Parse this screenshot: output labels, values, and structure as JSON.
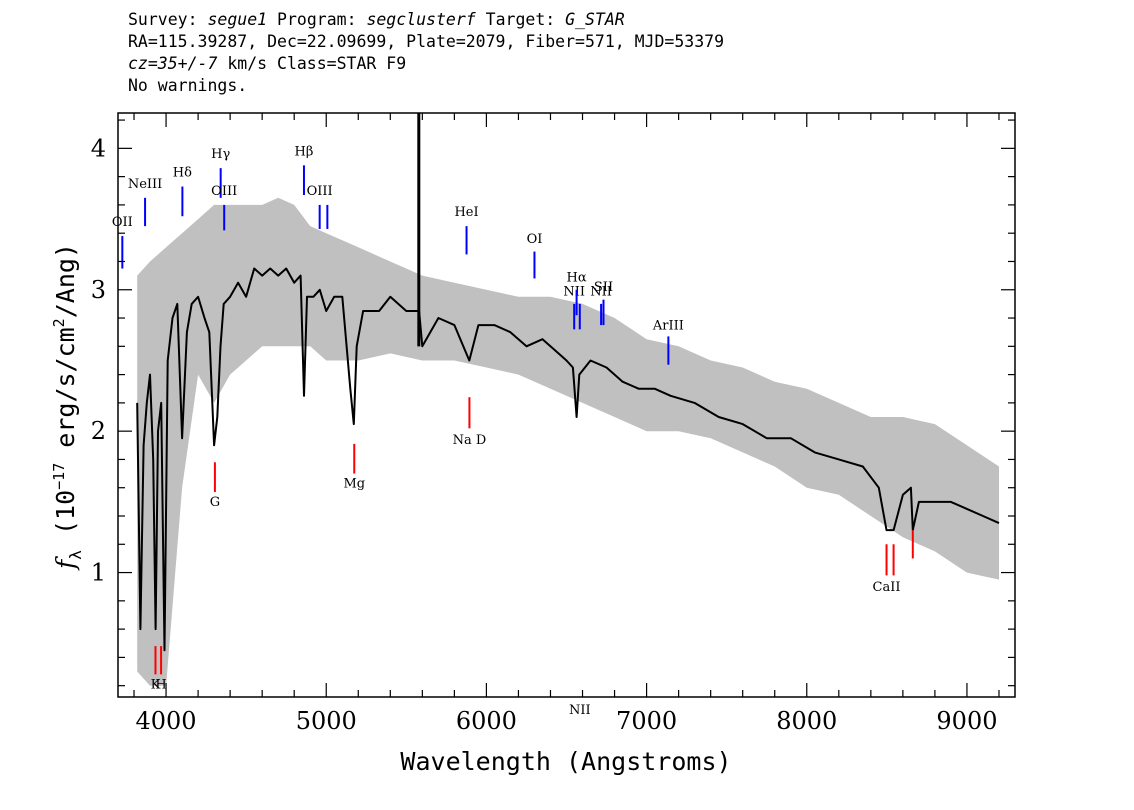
{
  "header": {
    "line1_a": "Survey: ",
    "survey": "segue1",
    "line1_b": " Program: ",
    "program": "segclusterf",
    "line1_c": " Target: ",
    "target": "G_STAR",
    "line2": "RA=115.39287, Dec=22.09699, Plate=2079, Fiber=571, MJD=53379",
    "line3_cz": "cz=35+/-7",
    "line3_rest": " km/s Class=STAR F9",
    "line4": "No warnings."
  },
  "chart_data": {
    "type": "line",
    "title": "",
    "xlabel": "Wavelength (Angstroms)",
    "ylabel_prefix": "f",
    "ylabel_sub": "λ",
    "ylabel_mid": " (10",
    "ylabel_exp": "−17",
    "ylabel_rest1": " erg/s/cm",
    "ylabel_exp2": "2",
    "ylabel_rest2": "/Ang)",
    "xlim": [
      3700,
      9300
    ],
    "ylim": [
      0.12,
      4.25
    ],
    "x_ticks": [
      4000,
      5000,
      6000,
      7000,
      8000,
      9000
    ],
    "x_tick_labels": [
      "4000",
      "5000",
      "6000",
      "7000",
      "8000",
      "9000"
    ],
    "y_ticks": [
      1,
      2,
      3,
      4
    ],
    "y_tick_labels": [
      "1",
      "2",
      "3",
      "4"
    ],
    "colors": {
      "flux": "#000000",
      "error": "#c0c0c0",
      "emission": "#0000ff",
      "absorption": "#ff0000"
    },
    "series": [
      {
        "name": "flux",
        "x": [
          3820,
          3840,
          3860,
          3880,
          3900,
          3920,
          3935,
          3950,
          3970,
          3990,
          4010,
          4040,
          4070,
          4100,
          4130,
          4160,
          4200,
          4240,
          4270,
          4300,
          4320,
          4340,
          4360,
          4400,
          4450,
          4500,
          4550,
          4600,
          4650,
          4700,
          4750,
          4800,
          4840,
          4861,
          4880,
          4920,
          4960,
          5000,
          5050,
          5100,
          5150,
          5172,
          5190,
          5230,
          5280,
          5330,
          5400,
          5500,
          5580,
          5600,
          5700,
          5800,
          5893,
          5950,
          6050,
          6150,
          6250,
          6350,
          6450,
          6500,
          6540,
          6563,
          6580,
          6650,
          6750,
          6850,
          6950,
          7050,
          7150,
          7300,
          7450,
          7600,
          7750,
          7900,
          8050,
          8200,
          8350,
          8450,
          8498,
          8542,
          8600,
          8650,
          8662,
          8700,
          8800,
          8900,
          9000,
          9100,
          9200
        ],
        "y": [
          2.2,
          0.6,
          1.9,
          2.2,
          2.4,
          1.8,
          0.6,
          2.0,
          2.2,
          0.45,
          2.5,
          2.8,
          2.9,
          1.95,
          2.7,
          2.9,
          2.95,
          2.8,
          2.7,
          1.9,
          2.1,
          2.6,
          2.9,
          2.95,
          3.05,
          2.95,
          3.15,
          3.1,
          3.15,
          3.1,
          3.15,
          3.05,
          3.1,
          2.25,
          2.95,
          2.95,
          3.0,
          2.85,
          2.95,
          2.95,
          2.3,
          2.05,
          2.6,
          2.85,
          2.85,
          2.85,
          2.95,
          2.85,
          2.85,
          2.6,
          2.8,
          2.75,
          2.5,
          2.75,
          2.75,
          2.7,
          2.6,
          2.65,
          2.55,
          2.5,
          2.45,
          2.1,
          2.4,
          2.5,
          2.45,
          2.35,
          2.3,
          2.3,
          2.25,
          2.2,
          2.1,
          2.05,
          1.95,
          1.95,
          1.85,
          1.8,
          1.75,
          1.6,
          1.3,
          1.3,
          1.55,
          1.6,
          1.3,
          1.5,
          1.5,
          1.5,
          1.45,
          1.4,
          1.35
        ]
      },
      {
        "name": "error",
        "x": [
          3820,
          3900,
          4000,
          4100,
          4200,
          4300,
          4400,
          4500,
          4600,
          4700,
          4800,
          4900,
          5000,
          5200,
          5400,
          5600,
          5800,
          6000,
          6200,
          6400,
          6600,
          6800,
          7000,
          7200,
          7400,
          7600,
          7800,
          8000,
          8200,
          8400,
          8600,
          8800,
          9000,
          9200
        ],
        "lower": [
          0.3,
          0.2,
          0.2,
          1.6,
          2.4,
          2.2,
          2.4,
          2.5,
          2.6,
          2.6,
          2.6,
          2.6,
          2.5,
          2.5,
          2.55,
          2.5,
          2.5,
          2.45,
          2.4,
          2.3,
          2.2,
          2.1,
          2.0,
          2.0,
          1.95,
          1.85,
          1.75,
          1.6,
          1.55,
          1.4,
          1.25,
          1.15,
          1.0,
          0.95
        ],
        "upper": [
          3.1,
          3.2,
          3.3,
          3.4,
          3.5,
          3.6,
          3.6,
          3.6,
          3.6,
          3.65,
          3.6,
          3.45,
          3.4,
          3.3,
          3.2,
          3.1,
          3.05,
          3.0,
          2.95,
          2.95,
          2.9,
          2.8,
          2.65,
          2.6,
          2.5,
          2.45,
          2.35,
          2.3,
          2.2,
          2.1,
          2.1,
          2.05,
          1.9,
          1.75
        ]
      }
    ],
    "spike": {
      "x": 5578,
      "y": 4.25
    },
    "emission_lines": [
      {
        "label": "OII",
        "x": 3727,
        "label_y": 3.45,
        "y0": 3.15,
        "y1": 3.38
      },
      {
        "label": "NeIII",
        "x": 3869,
        "label_y": 3.72,
        "y0": 3.45,
        "y1": 3.65
      },
      {
        "label": "Hδ",
        "x": 4102,
        "label_y": 3.8,
        "y0": 3.52,
        "y1": 3.73
      },
      {
        "label": "Hγ",
        "x": 4341,
        "label_y": 3.93,
        "y0": 3.65,
        "y1": 3.86
      },
      {
        "label": "OIII",
        "x": 4363,
        "label_y": 3.67,
        "y0": 3.42,
        "y1": 3.6
      },
      {
        "label": "Hβ",
        "x": 4861,
        "label_y": 3.95,
        "y0": 3.67,
        "y1": 3.88
      },
      {
        "label": "OIII",
        "x": 4959,
        "label_y": 3.67,
        "y0": 3.43,
        "y1": 3.6
      },
      {
        "label": "",
        "x": 5007,
        "label_y": 0,
        "y0": 3.43,
        "y1": 3.6
      },
      {
        "label": "HeI",
        "x": 5876,
        "label_y": 3.52,
        "y0": 3.25,
        "y1": 3.45
      },
      {
        "label": "OI",
        "x": 6300,
        "label_y": 3.33,
        "y0": 3.08,
        "y1": 3.27
      },
      {
        "label": "NII",
        "x": 6548,
        "label_y": 2.96,
        "y0": 2.72,
        "y1": 2.9
      },
      {
        "label": "Hα",
        "x": 6563,
        "label_y": 3.06,
        "y0": 2.82,
        "y1": 3.0
      },
      {
        "label": "NII",
        "x": 6583,
        "label_y": 0,
        "y0": 2.72,
        "y1": 2.9
      },
      {
        "label": "NII",
        "x": 6716,
        "label_y": 2.96,
        "y0": 2.75,
        "y1": 2.9
      },
      {
        "label": "SII",
        "x": 6731,
        "label_y": 2.99,
        "y0": 2.75,
        "y1": 2.93
      },
      {
        "label": "ArIII",
        "x": 7136,
        "label_y": 2.72,
        "y0": 2.47,
        "y1": 2.67
      }
    ],
    "absorption_lines": [
      {
        "label": "K",
        "x": 3934,
        "label_y": 0.18,
        "y0": 0.28,
        "y1": 0.48
      },
      {
        "label": "H",
        "x": 3969,
        "label_y": 0.18,
        "y0": 0.28,
        "y1": 0.48
      },
      {
        "label": "G",
        "x": 4305,
        "label_y": 1.47,
        "y0": 1.57,
        "y1": 1.78
      },
      {
        "label": "Mg",
        "x": 5175,
        "label_y": 1.6,
        "y0": 1.7,
        "y1": 1.91
      },
      {
        "label": "Na D",
        "x": 5894,
        "label_y": 1.91,
        "y0": 2.02,
        "y1": 2.24
      },
      {
        "label": "CaII",
        "x": 8498,
        "label_y": 0.87,
        "y0": 0.98,
        "y1": 1.2
      },
      {
        "label": "",
        "x": 8542,
        "label_y": 0,
        "y0": 0.98,
        "y1": 1.2
      },
      {
        "label": "",
        "x": 8662,
        "label_y": 0,
        "y0": 1.1,
        "y1": 1.3
      }
    ]
  }
}
